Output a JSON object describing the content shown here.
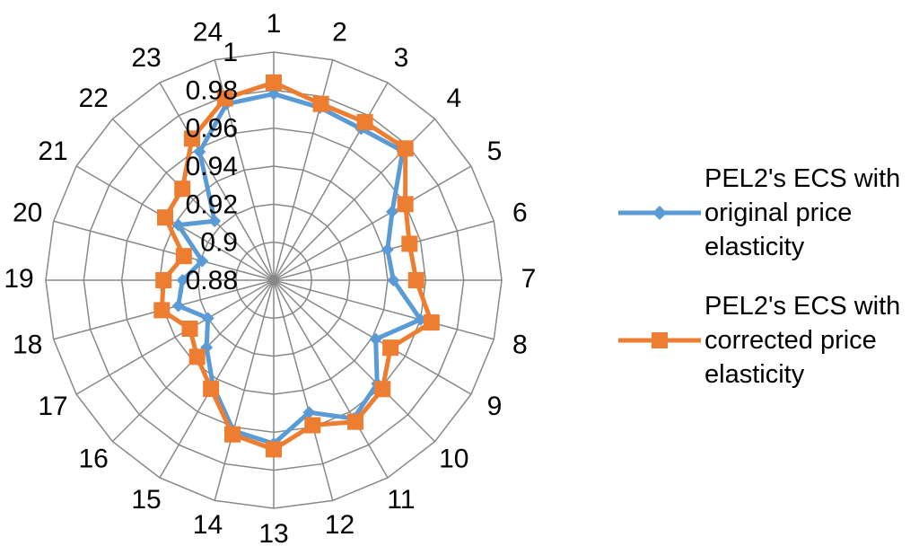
{
  "chart_data": {
    "type": "radar",
    "categories": [
      "1",
      "2",
      "3",
      "4",
      "5",
      "6",
      "7",
      "8",
      "9",
      "10",
      "11",
      "12",
      "13",
      "14",
      "15",
      "16",
      "17",
      "18",
      "19",
      "20",
      "21",
      "22",
      "23",
      "24"
    ],
    "ylim": [
      0.88,
      1
    ],
    "yticks": [
      0.88,
      0.9,
      0.92,
      0.94,
      0.96,
      0.98,
      1
    ],
    "grid": true,
    "legend": "right",
    "series": [
      {
        "name": "PEL2's ECS with original price elasticity",
        "color": "#5b9bd5",
        "marker": "diamond",
        "values": [
          0.978,
          0.974,
          0.972,
          0.976,
          0.952,
          0.942,
          0.943,
          0.96,
          0.942,
          0.957,
          0.964,
          0.952,
          0.966,
          0.962,
          0.944,
          0.93,
          0.92,
          0.932,
          0.928,
          0.919,
          0.938,
          0.924,
          0.958,
          0.976
        ]
      },
      {
        "name": "PEL2's ECS with corrected price elasticity",
        "color": "#ed7d31",
        "marker": "square",
        "values": [
          0.984,
          0.976,
          0.976,
          0.978,
          0.96,
          0.954,
          0.955,
          0.966,
          0.951,
          0.961,
          0.966,
          0.959,
          0.969,
          0.964,
          0.946,
          0.937,
          0.931,
          0.941,
          0.938,
          0.929,
          0.946,
          0.948,
          0.966,
          0.979
        ]
      }
    ]
  }
}
